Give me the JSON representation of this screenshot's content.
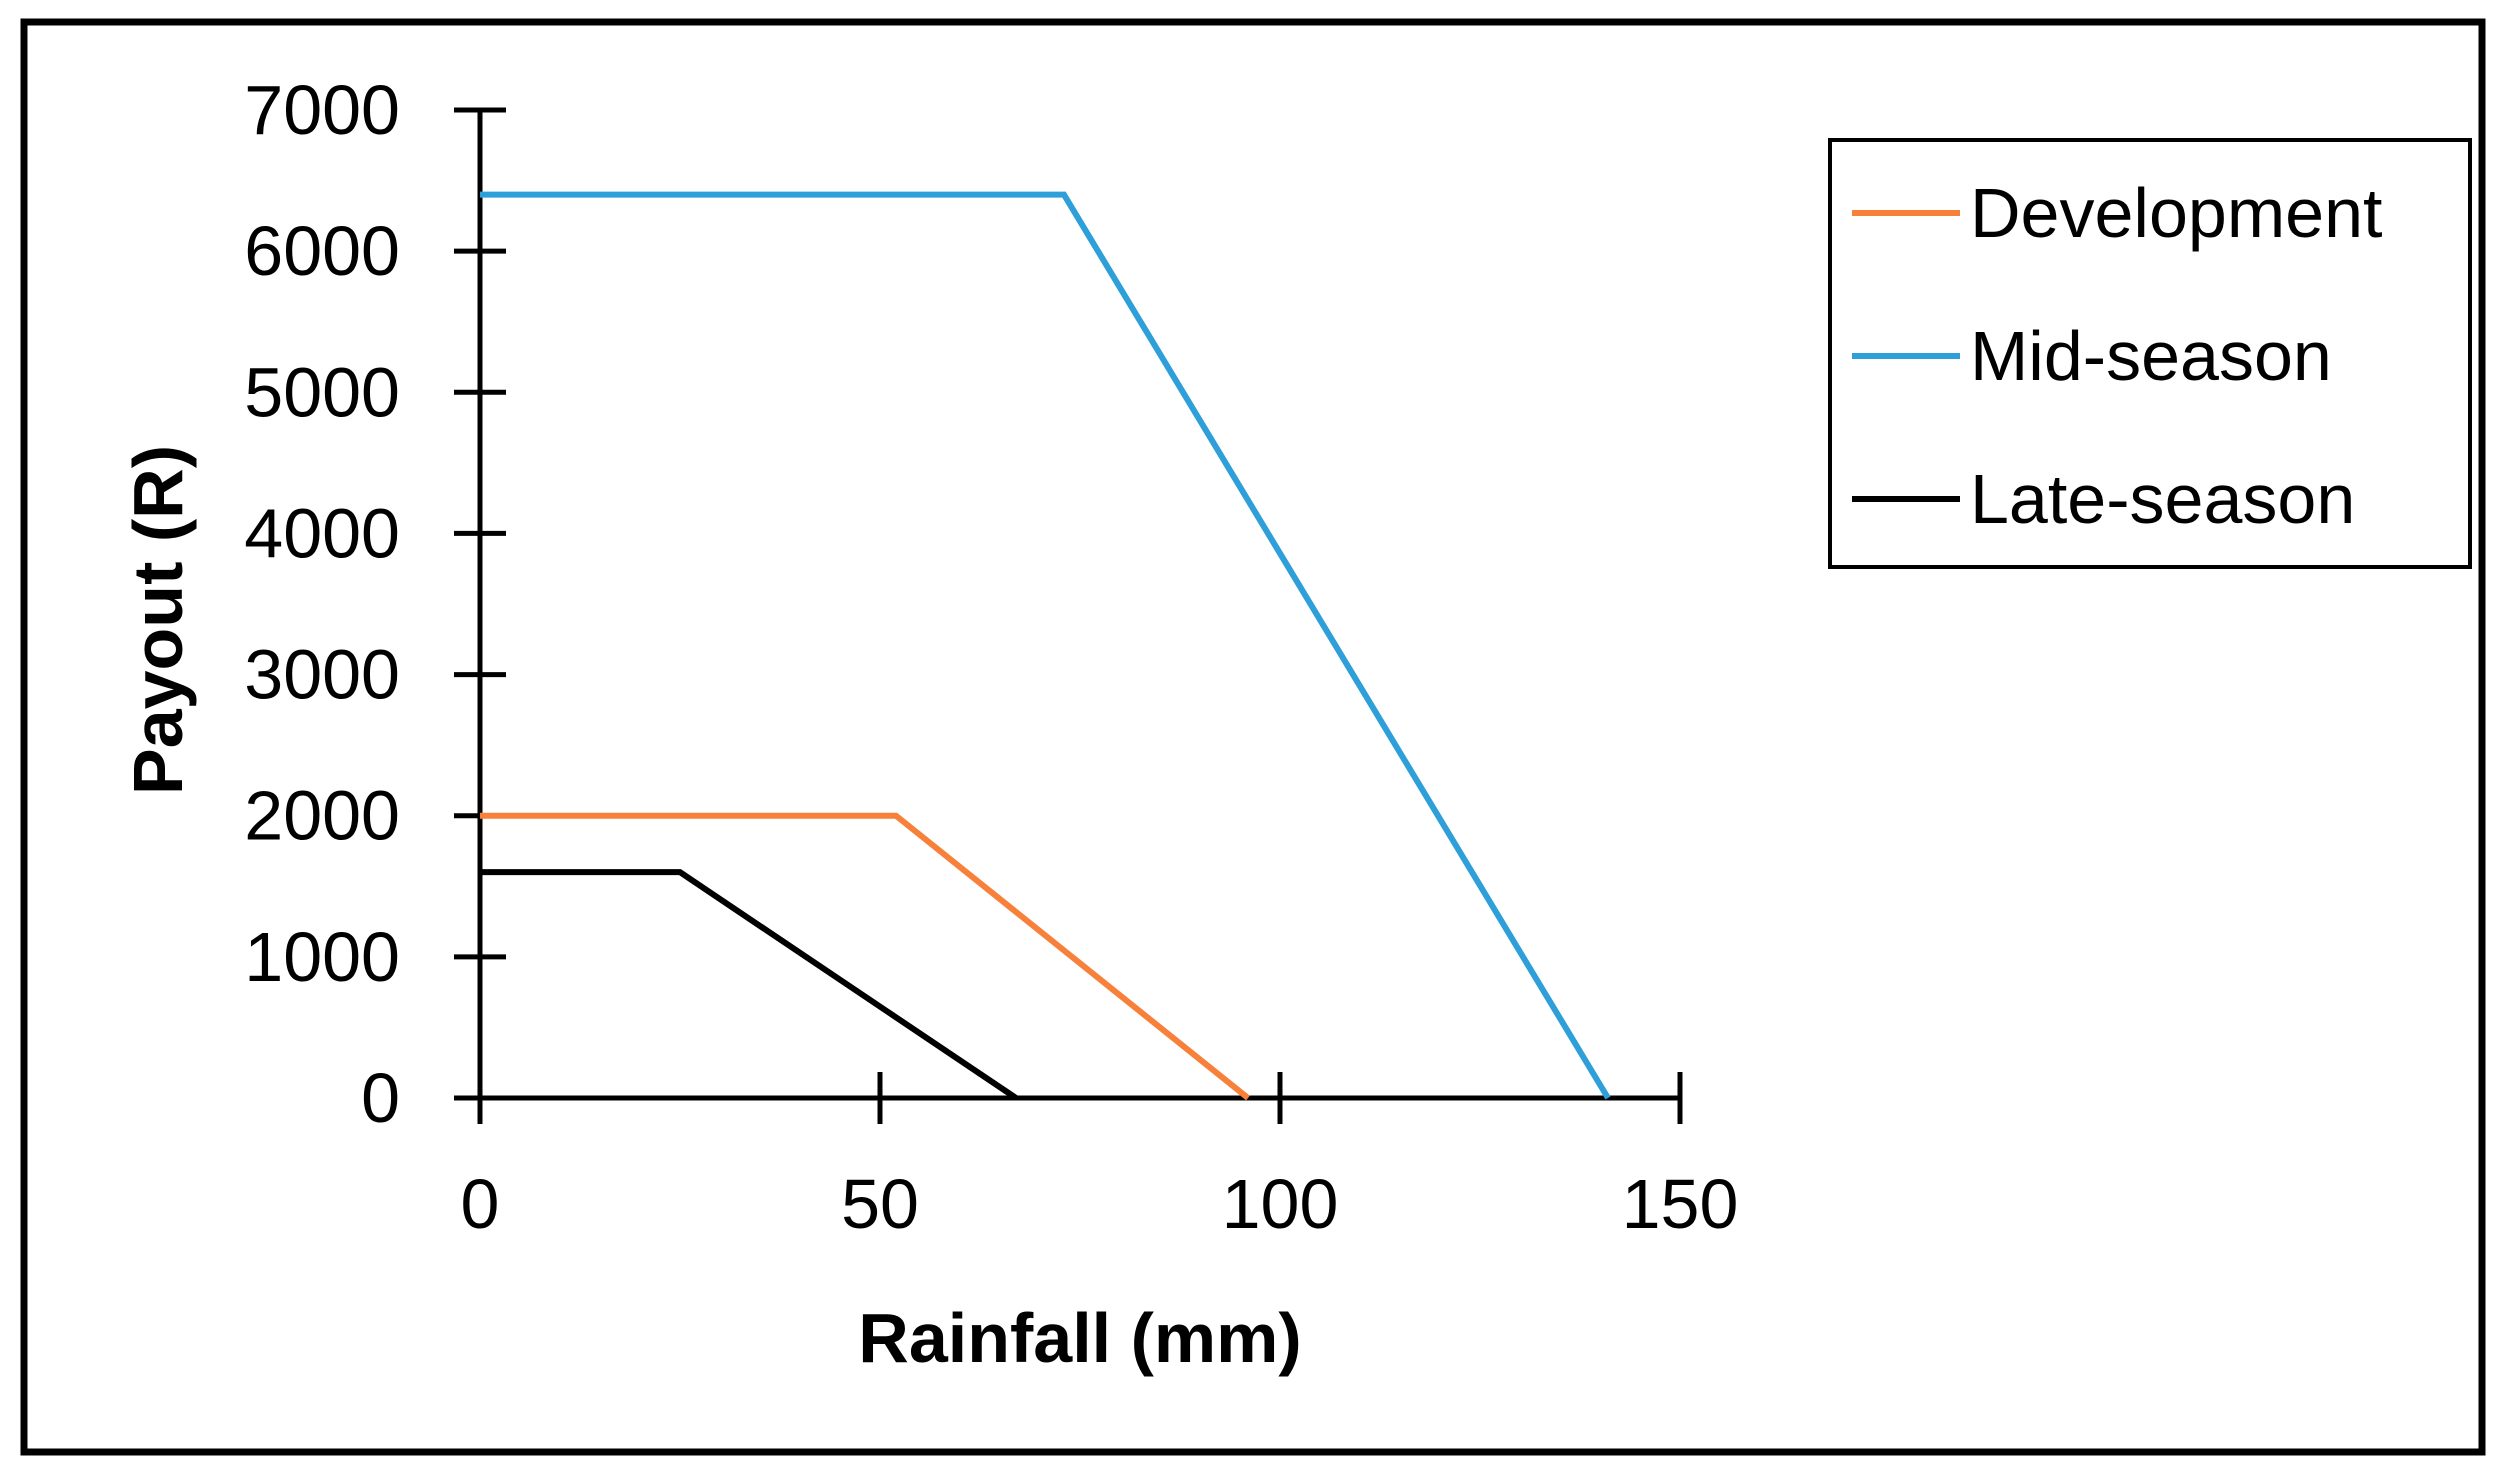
{
  "chart_data": {
    "type": "line",
    "title": "",
    "xlabel": "Rainfall (mm)",
    "ylabel": "Payout (R)",
    "xlim": [
      0,
      150
    ],
    "ylim": [
      0,
      7000
    ],
    "xticks": [
      0,
      50,
      100,
      150
    ],
    "yticks": [
      0,
      1000,
      2000,
      3000,
      4000,
      5000,
      6000,
      7000
    ],
    "legend": "top-right",
    "grid": false,
    "series": [
      {
        "name": "Development",
        "color": "#F7803A",
        "x": [
          0,
          52,
          96
        ],
        "y": [
          2000,
          2000,
          0
        ]
      },
      {
        "name": "Mid-season",
        "color": "#2E9FD8",
        "x": [
          0,
          73,
          141
        ],
        "y": [
          6400,
          6400,
          0
        ]
      },
      {
        "name": "Late-season",
        "color": "#000000",
        "x": [
          0,
          25,
          67
        ],
        "y": [
          1600,
          1600,
          0
        ]
      }
    ]
  }
}
